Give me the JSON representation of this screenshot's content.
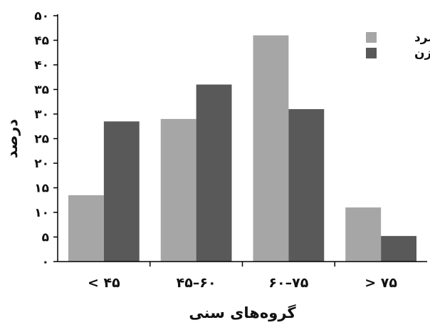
{
  "chart_data": {
    "type": "bar",
    "categories": [
      "< ۴۵",
      "۴۵–۶۰",
      "۶۰–۷۵",
      "> ۷۵"
    ],
    "series": [
      {
        "name": "مرد",
        "values": [
          13.5,
          29,
          46,
          11
        ],
        "color": "#a6a6a6"
      },
      {
        "name": "زن",
        "values": [
          28.5,
          36,
          31,
          5.2
        ],
        "color": "#595959"
      }
    ],
    "xlabel": "گروه‌های سنی",
    "ylabel": "درصد",
    "ylim": [
      0,
      50
    ],
    "yticks": [
      {
        "value": 0,
        "label": "۰"
      },
      {
        "value": 5,
        "label": "۵"
      },
      {
        "value": 10,
        "label": "۱۰"
      },
      {
        "value": 15,
        "label": "۱۵"
      },
      {
        "value": 20,
        "label": "۲۰"
      },
      {
        "value": 25,
        "label": "۲۵"
      },
      {
        "value": 30,
        "label": "۳۰"
      },
      {
        "value": 35,
        "label": "۳۵"
      },
      {
        "value": 40,
        "label": "۴۰"
      },
      {
        "value": 45,
        "label": "۴۵"
      },
      {
        "value": 50,
        "label": "۵۰"
      }
    ],
    "grid": false,
    "legend": "top-right"
  }
}
